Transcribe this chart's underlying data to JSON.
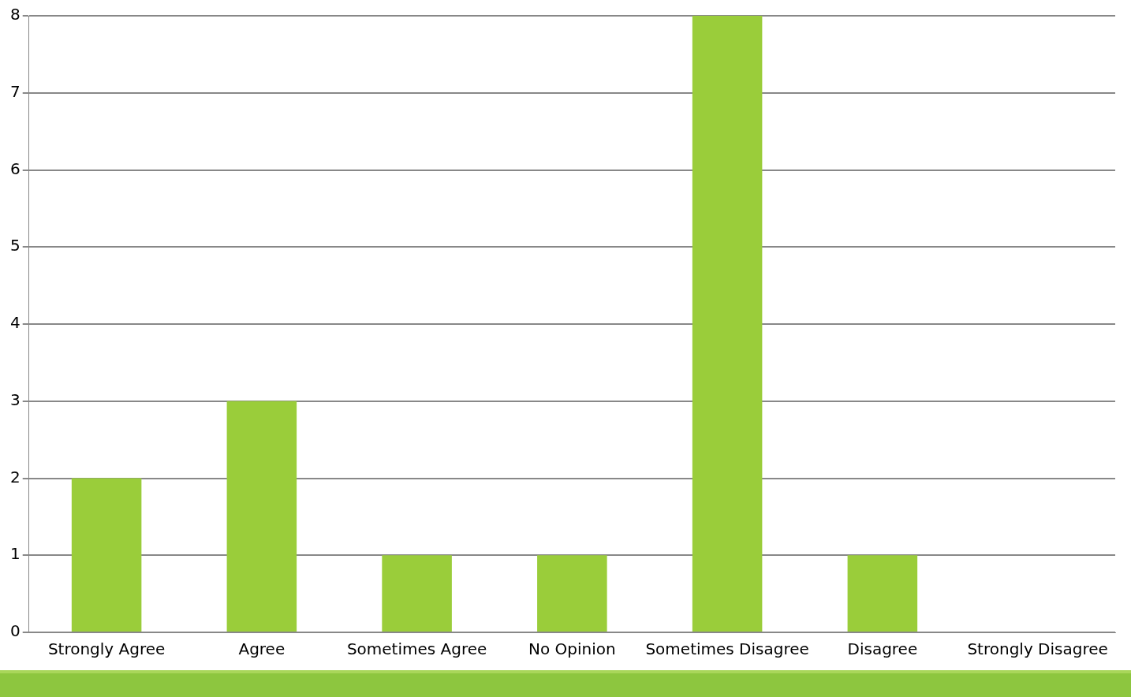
{
  "chart_data": {
    "type": "bar",
    "categories": [
      "Strongly Agree",
      "Agree",
      "Sometimes Agree",
      "No Opinion",
      "Sometimes Disagree",
      "Disagree",
      "Strongly Disagree"
    ],
    "values": [
      2,
      3,
      1,
      1,
      8,
      1,
      0
    ],
    "color": "#9acd3a",
    "ylim": [
      0,
      8
    ],
    "yticks": [
      0,
      1,
      2,
      3,
      4,
      5,
      6,
      7,
      8
    ],
    "grid": true,
    "legend": false
  }
}
